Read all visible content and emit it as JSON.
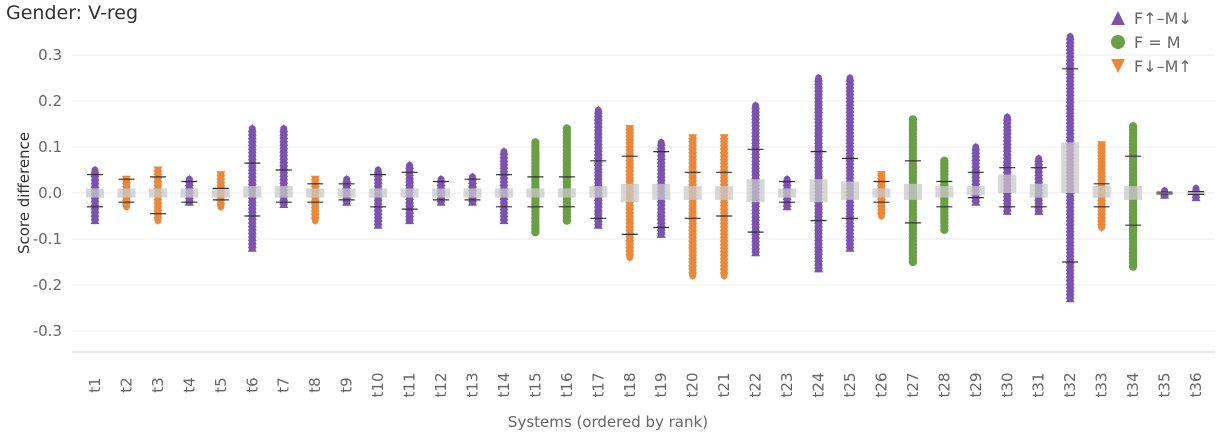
{
  "title": "Gender: V-reg",
  "chart_data": {
    "type": "scatter",
    "title": "Gender: V-reg",
    "xlabel": "Systems (ordered by rank)",
    "ylabel": "Score difference",
    "ylim": [
      -0.35,
      0.35
    ],
    "yticks": [
      "0.3",
      "0.2",
      "0.1",
      "0.0",
      "-0.1",
      "-0.2",
      "-0.3"
    ],
    "ytick_values": [
      0.3,
      0.2,
      0.1,
      0.0,
      -0.1,
      -0.2,
      -0.3
    ],
    "grid": "horizontal",
    "legend_position": "top-right",
    "legend": [
      {
        "label": "F↑–M↓",
        "marker": "triangle-up",
        "color": "#7B52AE"
      },
      {
        "label": "F = M",
        "marker": "circle",
        "color": "#6A9F48"
      },
      {
        "label": "F↓–M↑",
        "marker": "triangle-down",
        "color": "#E8883A"
      }
    ],
    "colors": {
      "F↑–M↓": "#7B52AE",
      "F = M": "#6A9F48",
      "F↓–M↑": "#E8883A",
      "box": "#BDBDBD",
      "whisker": "#333333"
    },
    "systems": [
      {
        "name": "t1",
        "group": "F↑–M↓",
        "min": -0.06,
        "max": 0.05,
        "q1": -0.01,
        "q3": 0.01,
        "wl": -0.03,
        "wh": 0.04
      },
      {
        "name": "t2",
        "group": "F↓–M↑",
        "min": -0.03,
        "max": 0.03,
        "q1": -0.01,
        "q3": 0.01,
        "wl": -0.02,
        "wh": 0.03
      },
      {
        "name": "t3",
        "group": "F↓–M↑",
        "min": -0.06,
        "max": 0.05,
        "q1": -0.01,
        "q3": 0.01,
        "wl": -0.045,
        "wh": 0.035
      },
      {
        "name": "t4",
        "group": "F↑–M↓",
        "min": -0.02,
        "max": 0.03,
        "q1": -0.01,
        "q3": 0.01,
        "wl": -0.02,
        "wh": 0.025
      },
      {
        "name": "t5",
        "group": "F↓–M↑",
        "min": -0.03,
        "max": 0.04,
        "q1": -0.01,
        "q3": 0.01,
        "wl": -0.015,
        "wh": 0.01
      },
      {
        "name": "t6",
        "group": "F↑–M↓",
        "min": -0.12,
        "max": 0.14,
        "q1": -0.01,
        "q3": 0.015,
        "wl": -0.05,
        "wh": 0.065
      },
      {
        "name": "t7",
        "group": "F↑–M↓",
        "min": -0.025,
        "max": 0.14,
        "q1": -0.01,
        "q3": 0.015,
        "wl": -0.02,
        "wh": 0.05
      },
      {
        "name": "t8",
        "group": "F↓–M↑",
        "min": -0.06,
        "max": 0.03,
        "q1": -0.01,
        "q3": 0.01,
        "wl": -0.02,
        "wh": 0.02
      },
      {
        "name": "t9",
        "group": "F↑–M↓",
        "min": -0.02,
        "max": 0.03,
        "q1": -0.01,
        "q3": 0.01,
        "wl": -0.015,
        "wh": 0.02
      },
      {
        "name": "t10",
        "group": "F↑–M↓",
        "min": -0.07,
        "max": 0.05,
        "q1": -0.01,
        "q3": 0.01,
        "wl": -0.03,
        "wh": 0.04
      },
      {
        "name": "t11",
        "group": "F↑–M↓",
        "min": -0.06,
        "max": 0.06,
        "q1": -0.01,
        "q3": 0.01,
        "wl": -0.035,
        "wh": 0.045
      },
      {
        "name": "t12",
        "group": "F↑–M↓",
        "min": -0.02,
        "max": 0.03,
        "q1": -0.01,
        "q3": 0.01,
        "wl": -0.015,
        "wh": 0.025
      },
      {
        "name": "t13",
        "group": "F↑–M↓",
        "min": -0.02,
        "max": 0.035,
        "q1": -0.01,
        "q3": 0.01,
        "wl": -0.015,
        "wh": 0.03
      },
      {
        "name": "t14",
        "group": "F↑–M↓",
        "min": -0.06,
        "max": 0.09,
        "q1": -0.01,
        "q3": 0.01,
        "wl": -0.03,
        "wh": 0.04
      },
      {
        "name": "t15",
        "group": "F = M",
        "min": -0.085,
        "max": 0.11,
        "q1": -0.01,
        "q3": 0.01,
        "wl": -0.03,
        "wh": 0.035
      },
      {
        "name": "t16",
        "group": "F = M",
        "min": -0.06,
        "max": 0.14,
        "q1": -0.01,
        "q3": 0.01,
        "wl": -0.03,
        "wh": 0.035
      },
      {
        "name": "t17",
        "group": "F↑–M↓",
        "min": -0.07,
        "max": 0.18,
        "q1": -0.01,
        "q3": 0.015,
        "wl": -0.055,
        "wh": 0.07
      },
      {
        "name": "t18",
        "group": "F↓–M↑",
        "min": -0.14,
        "max": 0.14,
        "q1": -0.02,
        "q3": 0.02,
        "wl": -0.09,
        "wh": 0.08
      },
      {
        "name": "t19",
        "group": "F↑–M↓",
        "min": -0.09,
        "max": 0.11,
        "q1": -0.015,
        "q3": 0.02,
        "wl": -0.075,
        "wh": 0.09
      },
      {
        "name": "t20",
        "group": "F↓–M↑",
        "min": -0.18,
        "max": 0.12,
        "q1": -0.015,
        "q3": 0.015,
        "wl": -0.055,
        "wh": 0.045
      },
      {
        "name": "t21",
        "group": "F↓–M↑",
        "min": -0.18,
        "max": 0.12,
        "q1": -0.015,
        "q3": 0.015,
        "wl": -0.05,
        "wh": 0.045
      },
      {
        "name": "t22",
        "group": "F↑–M↓",
        "min": -0.13,
        "max": 0.19,
        "q1": -0.02,
        "q3": 0.03,
        "wl": -0.085,
        "wh": 0.095
      },
      {
        "name": "t23",
        "group": "F↑–M↓",
        "min": -0.03,
        "max": 0.03,
        "q1": -0.01,
        "q3": 0.01,
        "wl": -0.02,
        "wh": 0.025
      },
      {
        "name": "t24",
        "group": "F↑–M↓",
        "min": -0.165,
        "max": 0.25,
        "q1": -0.02,
        "q3": 0.03,
        "wl": -0.06,
        "wh": 0.09
      },
      {
        "name": "t25",
        "group": "F↑–M↓",
        "min": -0.12,
        "max": 0.25,
        "q1": -0.015,
        "q3": 0.025,
        "wl": -0.055,
        "wh": 0.075
      },
      {
        "name": "t26",
        "group": "F↓–M↑",
        "min": -0.05,
        "max": 0.04,
        "q1": -0.01,
        "q3": 0.01,
        "wl": -0.02,
        "wh": 0.025
      },
      {
        "name": "t27",
        "group": "F = M",
        "min": -0.15,
        "max": 0.16,
        "q1": -0.015,
        "q3": 0.02,
        "wl": -0.065,
        "wh": 0.07
      },
      {
        "name": "t28",
        "group": "F = M",
        "min": -0.08,
        "max": 0.07,
        "q1": -0.01,
        "q3": 0.015,
        "wl": -0.03,
        "wh": 0.025
      },
      {
        "name": "t29",
        "group": "F↑–M↓",
        "min": -0.02,
        "max": 0.1,
        "q1": -0.005,
        "q3": 0.015,
        "wl": -0.01,
        "wh": 0.045
      },
      {
        "name": "t30",
        "group": "F↑–M↓",
        "min": -0.04,
        "max": 0.165,
        "q1": 0.0,
        "q3": 0.04,
        "wl": -0.03,
        "wh": 0.055
      },
      {
        "name": "t31",
        "group": "F↑–M↓",
        "min": -0.04,
        "max": 0.075,
        "q1": -0.01,
        "q3": 0.02,
        "wl": -0.03,
        "wh": 0.055
      },
      {
        "name": "t32",
        "group": "F↑–M↓",
        "min": -0.23,
        "max": 0.34,
        "q1": 0.0,
        "q3": 0.11,
        "wl": -0.15,
        "wh": 0.27
      },
      {
        "name": "t33",
        "group": "F↓–M↑",
        "min": -0.075,
        "max": 0.105,
        "q1": -0.01,
        "q3": 0.015,
        "wl": -0.03,
        "wh": 0.02
      },
      {
        "name": "t34",
        "group": "F = M",
        "min": -0.16,
        "max": 0.145,
        "q1": -0.015,
        "q3": 0.015,
        "wl": -0.07,
        "wh": 0.08
      },
      {
        "name": "t35",
        "group": "F↑–M↓",
        "min": -0.005,
        "max": 0.005,
        "q1": -0.002,
        "q3": 0.002,
        "wl": -0.002,
        "wh": 0.002
      },
      {
        "name": "t36",
        "group": "F↑–M↓",
        "min": -0.01,
        "max": 0.01,
        "q1": -0.003,
        "q3": 0.003,
        "wl": -0.003,
        "wh": 0.003
      }
    ]
  }
}
